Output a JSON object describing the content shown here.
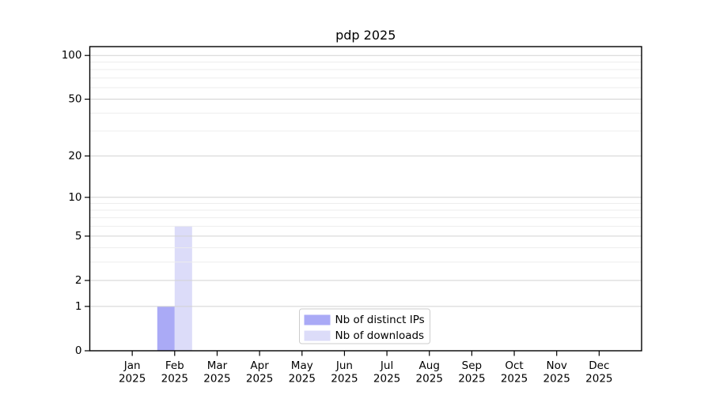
{
  "chart_data": {
    "type": "bar",
    "title": "pdp 2025",
    "categories": [
      "Jan",
      "Feb",
      "Mar",
      "Apr",
      "May",
      "Jun",
      "Jul",
      "Aug",
      "Sep",
      "Oct",
      "Nov",
      "Dec"
    ],
    "x_sublabel": "2025",
    "series": [
      {
        "name": "Nb of distinct IPs",
        "color": "#aaaaf6",
        "values": [
          0,
          1,
          0,
          0,
          0,
          0,
          0,
          0,
          0,
          0,
          0,
          0
        ]
      },
      {
        "name": "Nb of downloads",
        "color": "#dcdcf9",
        "values": [
          0,
          6,
          0,
          0,
          0,
          0,
          0,
          0,
          0,
          0,
          0,
          0
        ]
      }
    ],
    "y_scale": "log10(1+value)",
    "y_major_ticks": [
      0,
      1,
      2,
      5,
      10,
      20,
      50,
      100
    ],
    "y_minor_gridlines": [
      3,
      4,
      6,
      7,
      8,
      9,
      30,
      40,
      60,
      70,
      80,
      90
    ],
    "ylim": [
      0,
      115
    ],
    "xlabel": "",
    "ylabel": "",
    "grid": true,
    "legend": {
      "position": "lower-center-inside",
      "entries": [
        "Nb of distinct IPs",
        "Nb of downloads"
      ]
    },
    "colors": {
      "grid_major": "#d2d2d2",
      "grid_minor": "#ededed",
      "spine": "#000000",
      "text": "#000000",
      "background": "#ffffff",
      "legend_border": "#cccccc",
      "legend_background": "#ffffff"
    }
  }
}
